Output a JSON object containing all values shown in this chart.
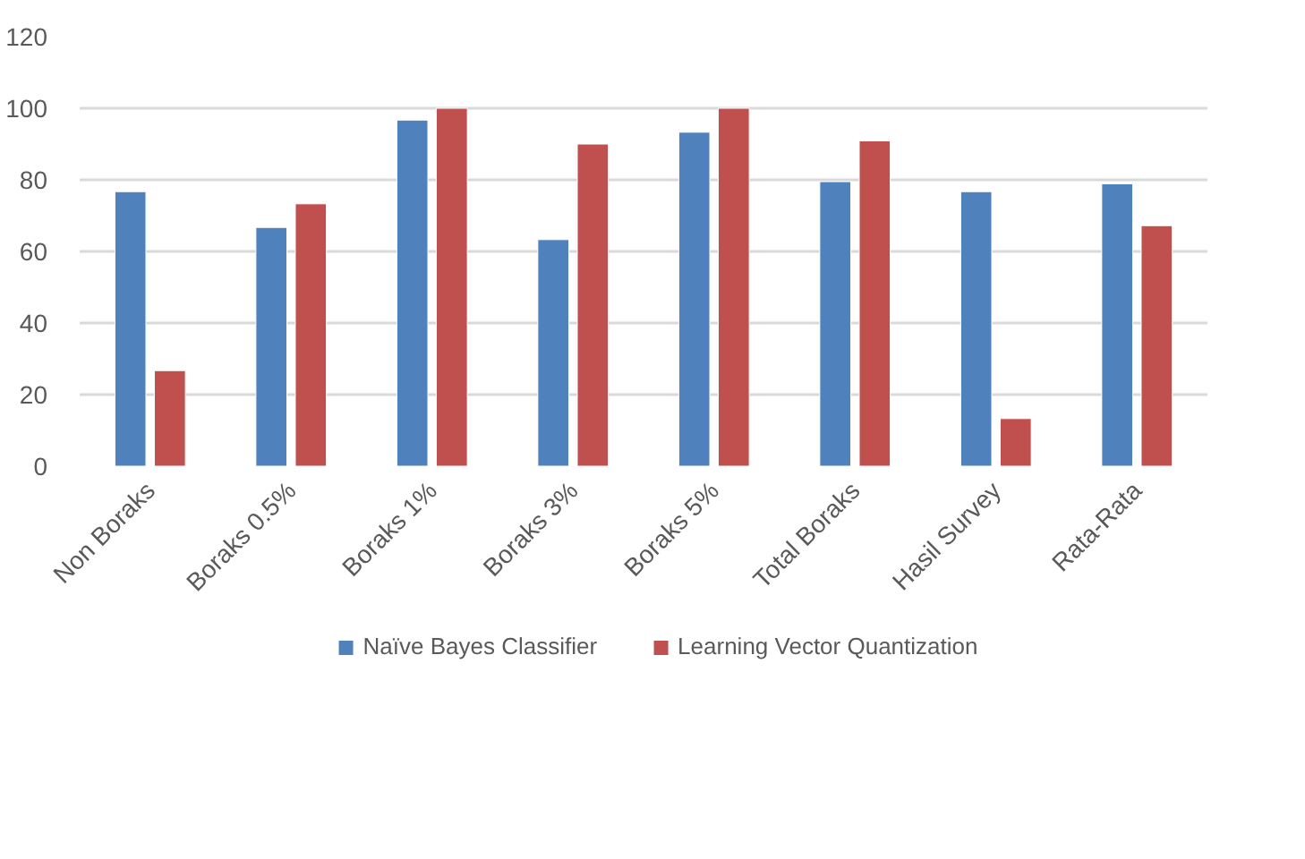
{
  "chart_data": {
    "type": "bar",
    "categories": [
      "Non Boraks",
      "Boraks 0.5%",
      "Boraks 1%",
      "Boraks 3%",
      "Boraks 5%",
      "Total Boraks",
      "Hasil Survey",
      "Rata-Rata"
    ],
    "series": [
      {
        "name": "Naïve Bayes Classifier",
        "color": "#4f81bd",
        "values": [
          76.7,
          66.7,
          96.7,
          63.3,
          93.3,
          79.5,
          76.7,
          78.9
        ]
      },
      {
        "name": "Learning Vector Quantization",
        "color": "#c0504d",
        "values": [
          26.7,
          73.3,
          100,
          90,
          100,
          90.9,
          13.3,
          67.2
        ]
      }
    ],
    "ylim": [
      0,
      120
    ],
    "yticks": [
      0,
      20,
      40,
      60,
      80,
      100,
      120
    ],
    "grid": "y",
    "legend": "bottom"
  }
}
